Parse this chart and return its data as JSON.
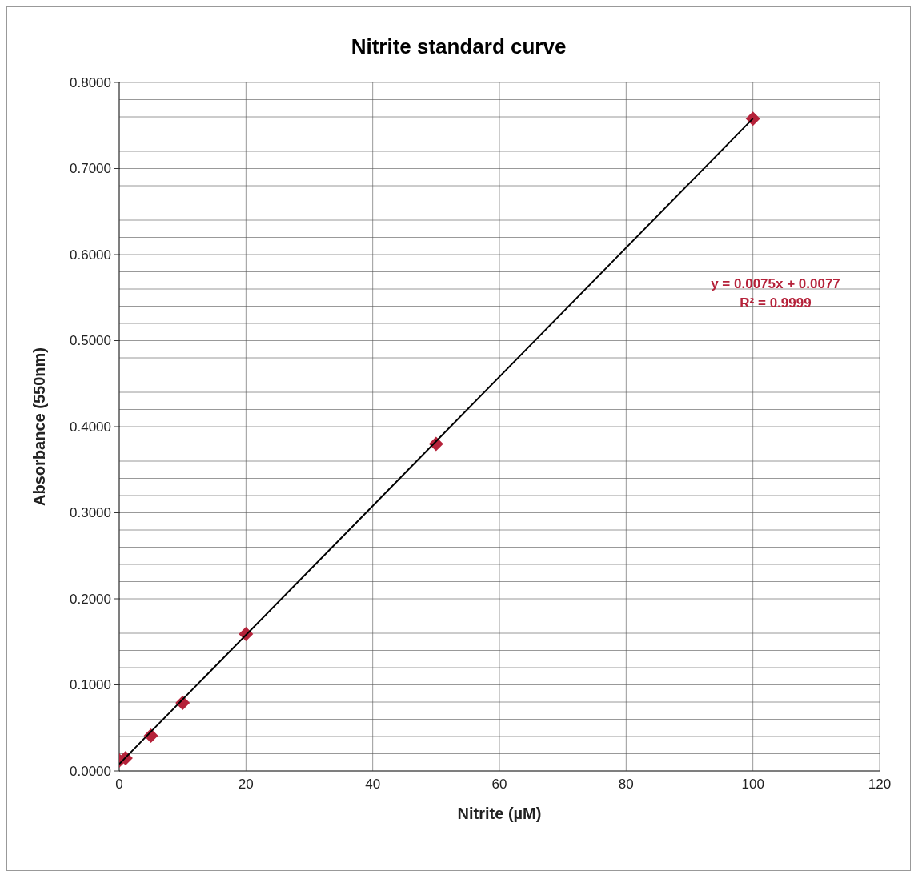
{
  "chart_data": {
    "type": "scatter",
    "title": "Nitrite standard curve",
    "xlabel": "Nitrite (µM)",
    "ylabel": "Absorbance (550nm)",
    "xlim": [
      0,
      120
    ],
    "xticks": [
      0,
      20,
      40,
      60,
      80,
      100,
      120
    ],
    "ylim": [
      0,
      0.8
    ],
    "yticks": [
      {
        "value": 0,
        "label": "0.0000"
      },
      {
        "value": 0.02,
        "label": null
      },
      {
        "value": 0.04,
        "label": null
      },
      {
        "value": 0.06,
        "label": null
      },
      {
        "value": 0.08,
        "label": null
      },
      {
        "value": 0.1,
        "label": "0.1000"
      },
      {
        "value": 0.12,
        "label": null
      },
      {
        "value": 0.14,
        "label": null
      },
      {
        "value": 0.16,
        "label": null
      },
      {
        "value": 0.18,
        "label": null
      },
      {
        "value": 0.2,
        "label": "0.2000"
      },
      {
        "value": 0.22,
        "label": null
      },
      {
        "value": 0.24,
        "label": null
      },
      {
        "value": 0.26,
        "label": null
      },
      {
        "value": 0.28,
        "label": null
      },
      {
        "value": 0.3,
        "label": "0.3000"
      },
      {
        "value": 0.32,
        "label": null
      },
      {
        "value": 0.34,
        "label": null
      },
      {
        "value": 0.36,
        "label": null
      },
      {
        "value": 0.38,
        "label": null
      },
      {
        "value": 0.4,
        "label": "0.4000"
      },
      {
        "value": 0.42,
        "label": null
      },
      {
        "value": 0.44,
        "label": null
      },
      {
        "value": 0.46,
        "label": null
      },
      {
        "value": 0.48,
        "label": null
      },
      {
        "value": 0.5,
        "label": "0.5000"
      },
      {
        "value": 0.52,
        "label": null
      },
      {
        "value": 0.54,
        "label": null
      },
      {
        "value": 0.56,
        "label": null
      },
      {
        "value": 0.58,
        "label": null
      },
      {
        "value": 0.6,
        "label": "0.6000"
      },
      {
        "value": 0.62,
        "label": null
      },
      {
        "value": 0.64,
        "label": null
      },
      {
        "value": 0.66,
        "label": null
      },
      {
        "value": 0.68,
        "label": null
      },
      {
        "value": 0.7,
        "label": "0.7000"
      },
      {
        "value": 0.72,
        "label": null
      },
      {
        "value": 0.74,
        "label": null
      },
      {
        "value": 0.76,
        "label": null
      },
      {
        "value": 0.78,
        "label": null
      },
      {
        "value": 0.8,
        "label": "0.8000"
      }
    ],
    "grid": true,
    "legend": false,
    "marker": "diamond",
    "series": [
      {
        "type": "scatter",
        "color": "#b5223a",
        "x": [
          0,
          1,
          5,
          10,
          20,
          50,
          100
        ],
        "values": [
          0.012,
          0.015,
          0.041,
          0.079,
          0.159,
          0.38,
          0.758
        ]
      },
      {
        "type": "line",
        "color": "#000000",
        "marker": "none",
        "line_style": "solid",
        "x": [
          0,
          100
        ],
        "values": [
          0.008,
          0.758
        ]
      }
    ],
    "annotations": [
      "y = 0.0075x + 0.0077",
      "R² = 0.9999"
    ]
  }
}
